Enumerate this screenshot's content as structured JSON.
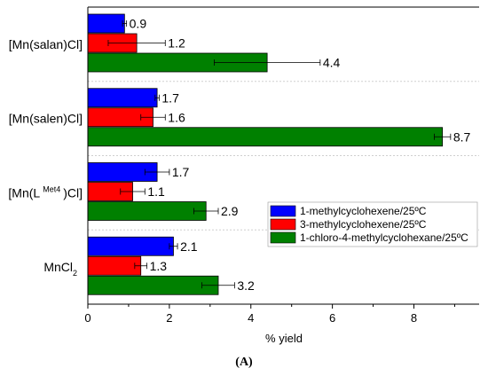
{
  "chart_data": {
    "type": "bar",
    "orientation": "horizontal",
    "categories": [
      "[Mn(salan)Cl]",
      "[Mn(salen)Cl]",
      "[Mn(L Met4 )Cl]",
      "MnCl2"
    ],
    "category_labels": [
      {
        "text": "[Mn(salan)Cl]"
      },
      {
        "text": "[Mn(salen)Cl]"
      },
      {
        "parts": [
          "[Mn(L",
          "Met4",
          ")Cl]"
        ]
      },
      {
        "parts": [
          "MnCl",
          "2"
        ]
      }
    ],
    "series": [
      {
        "name": "1-methylcyclohexene/25ºC",
        "color": "#0000ff",
        "values": [
          0.9,
          1.7,
          1.7,
          2.1
        ],
        "errors": [
          0.05,
          0.05,
          0.3,
          0.1
        ],
        "labels": [
          "0.9",
          "1.7",
          "1.7",
          "2.1"
        ]
      },
      {
        "name": "3-methylcyclohexene/25ºC",
        "color": "#ff0000",
        "values": [
          1.2,
          1.6,
          1.1,
          1.3
        ],
        "errors": [
          0.7,
          0.3,
          0.3,
          0.15
        ],
        "labels": [
          "1.2",
          "1.6",
          "1.1",
          "1.3"
        ]
      },
      {
        "name": "1-chloro-4-methylcyclohexane/25ºC",
        "color": "#008000",
        "values": [
          4.4,
          8.7,
          2.9,
          3.2
        ],
        "errors": [
          1.3,
          0.2,
          0.3,
          0.4
        ],
        "labels": [
          "4.4",
          "8.7",
          "2.9",
          "3.2"
        ]
      }
    ],
    "xlabel": "% yield",
    "ylabel": "",
    "xlim": [
      0,
      9.6
    ],
    "xticks": [
      0,
      2,
      4,
      6,
      8
    ],
    "grid": "horizontal separators between groups",
    "legend_position": "middle-right"
  },
  "caption": "(A)"
}
